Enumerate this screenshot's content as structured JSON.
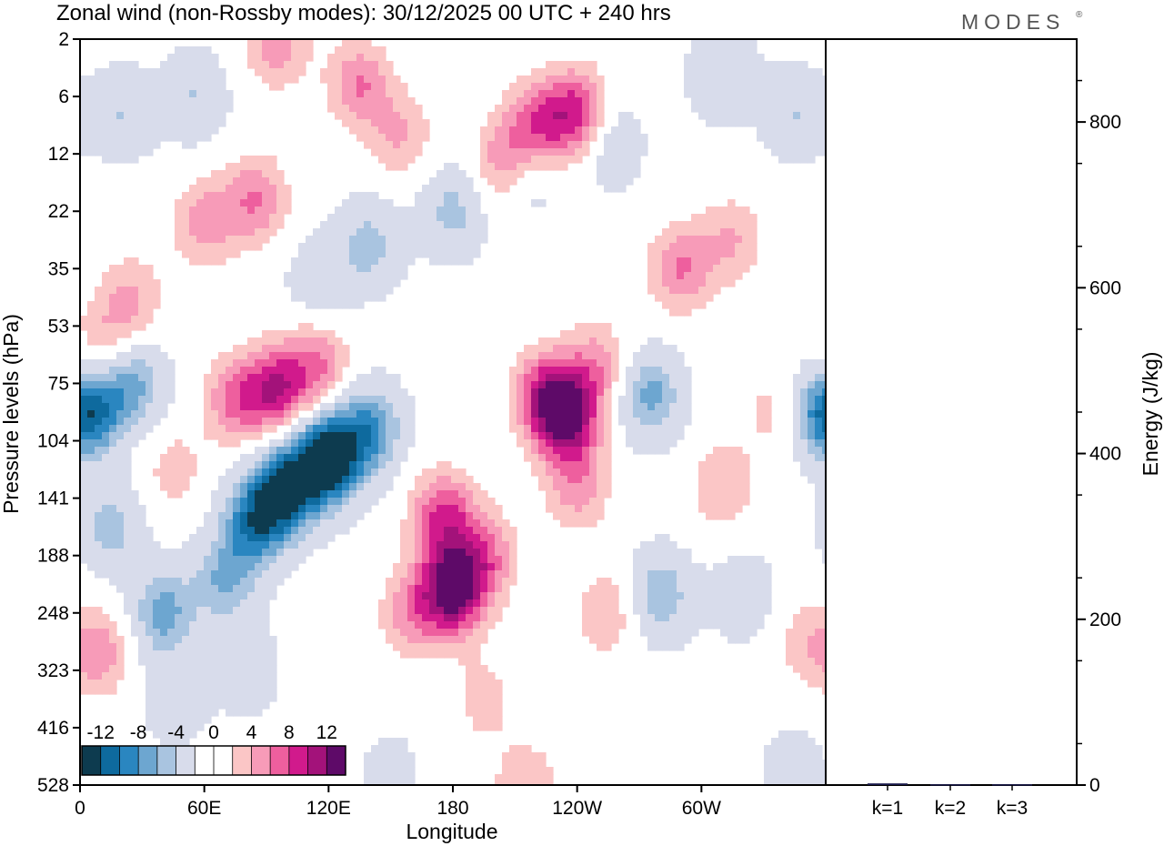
{
  "chart_data": [
    {
      "type": "heatmap",
      "title": "Zonal wind (non-Rossby modes):  30/12/2025  00 UTC  + 240 hrs",
      "xlabel": "Longitude",
      "ylabel": "Pressure levels (hPa)",
      "x_ticks": [
        "0",
        "60E",
        "120E",
        "180",
        "120W",
        "60W"
      ],
      "x_tick_values": [
        0,
        60,
        120,
        180,
        240,
        300
      ],
      "xlim": [
        0,
        360
      ],
      "y_ticks": [
        "2",
        "6",
        "12",
        "22",
        "35",
        "53",
        "75",
        "104",
        "141",
        "188",
        "248",
        "323",
        "416",
        "528"
      ],
      "colorbar": {
        "tick_labels": [
          "-12",
          "-8",
          "-4",
          "0",
          "4",
          "8",
          "12"
        ],
        "colors": [
          "#0d3b4f",
          "#0e6a9e",
          "#2a86c0",
          "#6da6d0",
          "#a9c4e0",
          "#d8dceb",
          "#ffffff",
          "#ffffff",
          "#fbc6c6",
          "#f79bb8",
          "#ee5f9e",
          "#d11a8c",
          "#a3127a",
          "#5e0a68"
        ]
      },
      "blobs": [
        {
          "lon": 120,
          "lvl": 7.3,
          "v": -15
        },
        {
          "lon": 100,
          "lvl": 7.8,
          "v": -12
        },
        {
          "lon": 85,
          "lvl": 8.4,
          "v": -10
        },
        {
          "lon": 70,
          "lvl": 9.4,
          "v": -6
        },
        {
          "lon": 140,
          "lvl": 6.8,
          "v": -8
        },
        {
          "lon": 5,
          "lvl": 6.5,
          "v": -9
        },
        {
          "lon": 25,
          "lvl": 6.0,
          "v": -7
        },
        {
          "lon": 40,
          "lvl": 10.0,
          "v": -7
        },
        {
          "lon": 15,
          "lvl": 8.5,
          "v": -5
        },
        {
          "lon": 45,
          "lvl": 11.5,
          "v": -3
        },
        {
          "lon": 80,
          "lvl": 11.0,
          "v": -3
        },
        {
          "lon": 140,
          "lvl": 3.6,
          "v": -5
        },
        {
          "lon": 180,
          "lvl": 3.0,
          "v": -5
        },
        {
          "lon": 215,
          "lvl": 2.4,
          "v": -4
        },
        {
          "lon": 115,
          "lvl": 4.2,
          "v": -3
        },
        {
          "lon": 20,
          "lvl": 1.3,
          "v": -4
        },
        {
          "lon": 55,
          "lvl": 1.0,
          "v": -4
        },
        {
          "lon": 255,
          "lvl": 1.8,
          "v": -4
        },
        {
          "lon": 310,
          "lvl": 0.6,
          "v": -4
        },
        {
          "lon": 345,
          "lvl": 1.3,
          "v": -4
        },
        {
          "lon": 275,
          "lvl": 6.2,
          "v": -7
        },
        {
          "lon": 280,
          "lvl": 9.7,
          "v": -6
        },
        {
          "lon": 320,
          "lvl": 9.7,
          "v": -3
        },
        {
          "lon": 355,
          "lvl": 6.6,
          "v": -4
        },
        {
          "lon": 150,
          "lvl": 12.8,
          "v": -2
        },
        {
          "lon": 345,
          "lvl": 12.8,
          "v": -3
        },
        {
          "lon": 180,
          "lvl": 9.6,
          "v": 13
        },
        {
          "lon": 175,
          "lvl": 8.3,
          "v": 8
        },
        {
          "lon": 195,
          "lvl": 9.0,
          "v": 6
        },
        {
          "lon": 160,
          "lvl": 10.0,
          "v": 5
        },
        {
          "lon": 235,
          "lvl": 6.6,
          "v": 11
        },
        {
          "lon": 225,
          "lvl": 6.2,
          "v": 8
        },
        {
          "lon": 250,
          "lvl": 5.7,
          "v": 5
        },
        {
          "lon": 240,
          "lvl": 7.8,
          "v": 5
        },
        {
          "lon": 95,
          "lvl": 6.1,
          "v": 9
        },
        {
          "lon": 75,
          "lvl": 6.3,
          "v": 6
        },
        {
          "lon": 115,
          "lvl": 5.7,
          "v": 6
        },
        {
          "lon": 85,
          "lvl": 2.8,
          "v": 6
        },
        {
          "lon": 60,
          "lvl": 3.2,
          "v": 5
        },
        {
          "lon": 240,
          "lvl": 1.3,
          "v": 9
        },
        {
          "lon": 220,
          "lvl": 1.5,
          "v": 7
        },
        {
          "lon": 205,
          "lvl": 2.2,
          "v": 6
        },
        {
          "lon": 135,
          "lvl": 0.8,
          "v": 6
        },
        {
          "lon": 95,
          "lvl": 0.1,
          "v": 5
        },
        {
          "lon": 290,
          "lvl": 4.0,
          "v": 6
        },
        {
          "lon": 315,
          "lvl": 3.5,
          "v": 4
        },
        {
          "lon": 310,
          "lvl": 7.8,
          "v": 4
        },
        {
          "lon": 335,
          "lvl": 6.5,
          "v": 3
        },
        {
          "lon": 10,
          "lvl": 10.7,
          "v": 5
        },
        {
          "lon": 12,
          "lvl": 5.3,
          "v": 4
        },
        {
          "lon": 45,
          "lvl": 7.5,
          "v": 3
        },
        {
          "lon": 255,
          "lvl": 10.0,
          "v": 4
        },
        {
          "lon": 215,
          "lvl": 13.0,
          "v": 4
        },
        {
          "lon": 195,
          "lvl": 11.5,
          "v": 3
        },
        {
          "lon": 25,
          "lvl": 4.5,
          "v": 4
        },
        {
          "lon": 350,
          "lvl": 10.5,
          "v": 3
        },
        {
          "lon": 155,
          "lvl": 1.7,
          "v": 4
        }
      ],
      "legend_position": "bottom-left"
    },
    {
      "type": "bar",
      "ylabel": "Energy (J/kg)",
      "categories": [
        "k=1",
        "k=2",
        "k=3"
      ],
      "values": [
        2,
        1,
        1
      ],
      "ylim": [
        0,
        900
      ],
      "y_ticks": [
        "0",
        "200",
        "400",
        "600",
        "800"
      ],
      "y_tick_values": [
        0,
        200,
        400,
        600,
        800
      ]
    }
  ],
  "brand": "MODES",
  "brand_mark": "®"
}
